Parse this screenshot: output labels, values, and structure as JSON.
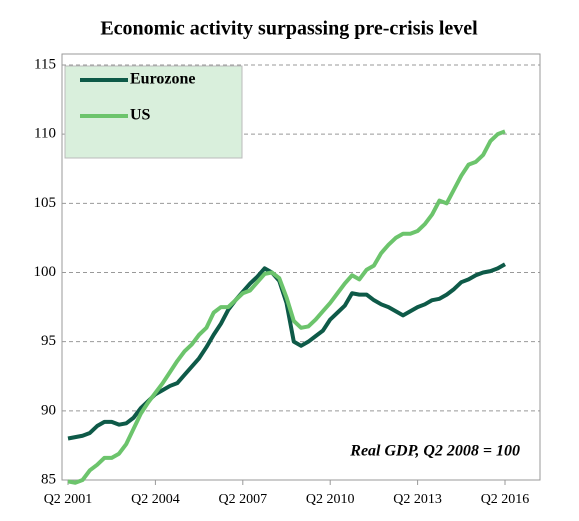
{
  "chart_data": {
    "type": "line",
    "title": "Economic activity surpassing pre-crisis level",
    "annotation": "Real  GDP, Q2 2008 = 100",
    "categories": [
      "Q2 2001",
      null,
      null,
      null,
      null,
      null,
      null,
      null,
      null,
      null,
      null,
      null,
      "Q2 2004",
      null,
      null,
      null,
      null,
      null,
      null,
      null,
      null,
      null,
      null,
      null,
      "Q2 2007",
      null,
      null,
      null,
      null,
      null,
      null,
      null,
      null,
      null,
      null,
      null,
      "Q2 2010",
      null,
      null,
      null,
      null,
      null,
      null,
      null,
      null,
      null,
      null,
      null,
      "Q2 2013",
      null,
      null,
      null,
      null,
      null,
      null,
      null,
      null,
      null,
      null,
      null,
      "Q2 2016"
    ],
    "series": [
      {
        "name": "Eurozone",
        "color": "#0e5a48",
        "values": [
          88.0,
          88.1,
          88.2,
          88.4,
          88.9,
          89.2,
          89.2,
          89.0,
          89.1,
          89.5,
          90.2,
          90.7,
          91.2,
          91.5,
          91.8,
          92.0,
          92.6,
          93.2,
          93.8,
          94.6,
          95.5,
          96.3,
          97.3,
          98.0,
          98.6,
          99.2,
          99.7,
          100.3,
          100.0,
          99.4,
          97.8,
          95.0,
          94.7,
          95.0,
          95.4,
          95.8,
          96.6,
          97.1,
          97.6,
          98.5,
          98.4,
          98.4,
          98.0,
          97.7,
          97.5,
          97.2,
          96.9,
          97.2,
          97.5,
          97.7,
          98.0,
          98.1,
          98.4,
          98.8,
          99.3,
          99.5,
          99.8,
          100.0,
          100.1,
          100.3,
          100.6
        ]
      },
      {
        "name": "US",
        "color": "#6cc46c",
        "values": [
          84.9,
          84.8,
          85.0,
          85.7,
          86.1,
          86.6,
          86.6,
          86.9,
          87.6,
          88.7,
          89.8,
          90.6,
          91.3,
          92.0,
          92.8,
          93.6,
          94.3,
          94.8,
          95.5,
          96.0,
          97.1,
          97.5,
          97.5,
          98.0,
          98.5,
          98.7,
          99.3,
          99.9,
          100.0,
          99.6,
          98.2,
          96.5,
          96.0,
          96.1,
          96.6,
          97.2,
          97.8,
          98.5,
          99.2,
          99.8,
          99.5,
          100.2,
          100.5,
          101.4,
          102.0,
          102.5,
          102.8,
          102.8,
          103.0,
          103.5,
          104.2,
          105.2,
          105.0,
          106.0,
          107.0,
          107.8,
          108.0,
          108.5,
          109.5,
          110.0,
          110.2
        ]
      }
    ],
    "ylim": [
      85,
      115
    ],
    "yticks": [
      85,
      90,
      95,
      100,
      105,
      110,
      115
    ],
    "grid": true,
    "legend": "top-left"
  }
}
